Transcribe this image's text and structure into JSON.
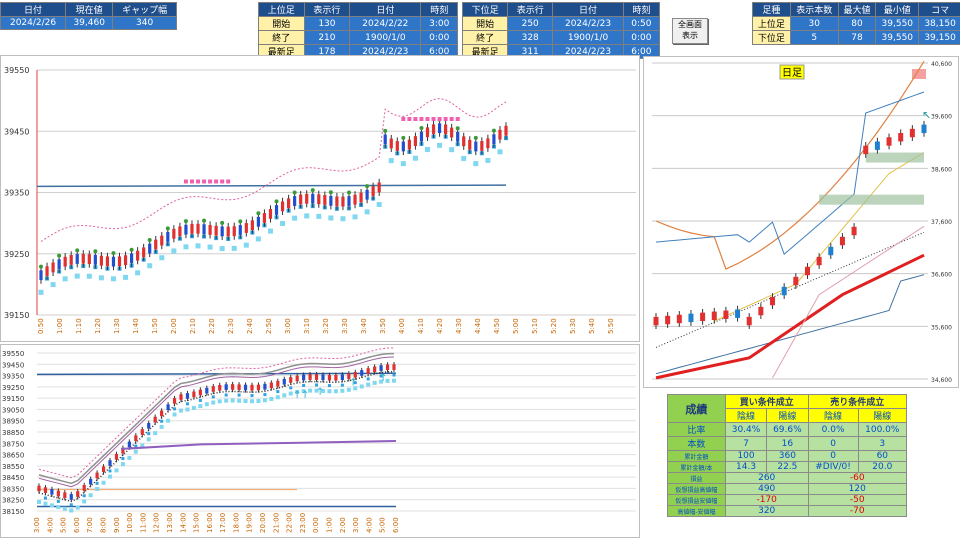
{
  "top_left": {
    "headers": [
      "日付",
      "現在値",
      "ギャップ幅"
    ],
    "values": [
      "2024/2/26",
      "39,460",
      "340"
    ]
  },
  "upper": {
    "header": [
      "上位足",
      "表示行",
      "日付",
      "時刻"
    ],
    "rows": [
      {
        "label": "開始",
        "row": "130",
        "date": "2024/2/22",
        "time": "3:00"
      },
      {
        "label": "終了",
        "row": "210",
        "date": "1900/1/0",
        "time": "0:00"
      },
      {
        "label": "最新足",
        "row": "178",
        "date": "2024/2/23",
        "time": "6:00"
      }
    ]
  },
  "lower": {
    "header": [
      "下位足",
      "表示行",
      "日付",
      "時刻"
    ],
    "rows": [
      {
        "label": "開始",
        "row": "250",
        "date": "2024/2/23",
        "time": "0:50"
      },
      {
        "label": "終了",
        "row": "328",
        "date": "1900/1/0",
        "time": "0:00"
      },
      {
        "label": "最新足",
        "row": "311",
        "date": "2024/2/23",
        "time": "6:00"
      }
    ]
  },
  "fullscreen_button": [
    "全画面",
    "表示"
  ],
  "summary": {
    "header": [
      "足種",
      "表示本数",
      "最大値",
      "最小値",
      "コマ"
    ],
    "rows": [
      {
        "kind": "上位足",
        "count": "30",
        "bars": "80",
        "max": "39,550",
        "min": "38,150"
      },
      {
        "kind": "下位足",
        "count": "5",
        "bars": "78",
        "max": "39,550",
        "min": "39,150"
      }
    ]
  },
  "chart_main": {
    "yticks": [
      "39550",
      "39450",
      "39350",
      "39250",
      "39150"
    ],
    "xticks": [
      "0:50",
      "1:00",
      "1:10",
      "1:20",
      "1:30",
      "1:40",
      "1:50",
      "2:00",
      "2:10",
      "2:20",
      "2:30",
      "2:40",
      "2:50",
      "3:00",
      "3:10",
      "3:20",
      "3:30",
      "3:40",
      "3:50",
      "4:00",
      "4:10",
      "4:20",
      "4:30",
      "4:40",
      "4:50",
      "5:00",
      "5:10",
      "5:20",
      "5:30",
      "5:40",
      "5:50"
    ]
  },
  "chart_lower": {
    "yticks": [
      "39550",
      "39450",
      "39350",
      "39250",
      "39150",
      "39050",
      "38950",
      "38850",
      "38750",
      "38650",
      "38550",
      "38450",
      "38350",
      "38250",
      "38150"
    ],
    "xticks": [
      "3:00",
      "4:00",
      "5:00",
      "6:00",
      "7:00",
      "8:00",
      "9:00",
      "10:00",
      "11:00",
      "12:00",
      "13:00",
      "14:00",
      "15:00",
      "16:00",
      "17:00",
      "18:00",
      "19:00",
      "20:00",
      "21:00",
      "22:00",
      "23:00",
      "0:00",
      "1:00",
      "2:00",
      "3:00",
      "4:00",
      "5:00",
      "6:00"
    ]
  },
  "chart_daily": {
    "title": "日足",
    "yticks": [
      "40,600",
      "39,600",
      "38,600",
      "37,600",
      "36,600",
      "35,600",
      "34,600"
    ]
  },
  "results": {
    "title": "成績",
    "buy": "買い条件成立",
    "sell": "売り条件成立",
    "sub": [
      "陰線",
      "陽線",
      "陰線",
      "陽線"
    ],
    "rows": [
      {
        "label": "比率",
        "v": [
          "30.4%",
          "69.6%",
          "0.0%",
          "100.0%"
        ]
      },
      {
        "label": "本数",
        "v": [
          "7",
          "16",
          "0",
          "3"
        ]
      },
      {
        "label": "累計金額",
        "v": [
          "100",
          "360",
          "0",
          "60"
        ]
      },
      {
        "label": "累計金額/本",
        "v": [
          "14.3",
          "22.5",
          "#DIV/0!",
          "20.0"
        ]
      }
    ],
    "rows2": [
      {
        "label": "損益",
        "buy": "260",
        "sell": "-60"
      },
      {
        "label": "仮想損益高値幅",
        "buy": "490",
        "sell": "120"
      },
      {
        "label": "仮想損益安値幅",
        "buy": "-170",
        "sell": "-50"
      },
      {
        "label": "高値幅-安値幅",
        "buy": "320",
        "sell": "-70"
      }
    ]
  },
  "colors": {
    "header": "#1f4e8c",
    "accent": "#2f75c8",
    "green": "#92d050",
    "yellow": "#ffff00"
  }
}
